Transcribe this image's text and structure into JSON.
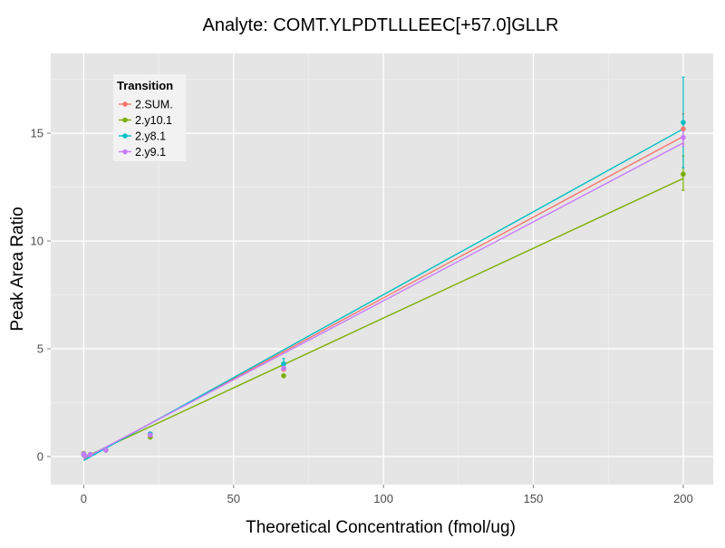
{
  "chart_data": {
    "type": "scatter",
    "title": "Analyte: COMT.YLPDTLLLEEC[+57.0]GLLR",
    "xlabel": "Theoretical Concentration (fmol/ug)",
    "ylabel": "Peak Area Ratio",
    "xlim": [
      -11,
      210
    ],
    "ylim": [
      -1.3,
      18.7
    ],
    "x_ticks": [
      0,
      50,
      100,
      150,
      200
    ],
    "y_ticks": [
      0,
      5,
      10,
      15
    ],
    "x_tick_labels": [
      "0",
      "50",
      "100",
      "150",
      "200"
    ],
    "y_tick_labels": [
      "0",
      "5",
      "10",
      "15"
    ],
    "grid": true,
    "legend": {
      "title": "Transition",
      "position": "top-left"
    },
    "series": [
      {
        "name": "2.SUM.",
        "color": "#F8766D",
        "points": [
          {
            "x": 0,
            "y": 0.15
          },
          {
            "x": 0.3,
            "y": 0.05
          },
          {
            "x": 2.2,
            "y": 0.1
          },
          {
            "x": 7.4,
            "y": 0.3
          },
          {
            "x": 22.2,
            "y": 1.05
          },
          {
            "x": 66.7,
            "y": 4.05
          },
          {
            "x": 200,
            "y": 15.2,
            "err": [
              14.5,
              15.9
            ]
          }
        ],
        "fit": [
          [
            0,
            -0.13
          ],
          [
            200,
            14.85
          ]
        ]
      },
      {
        "name": "2.y10.1",
        "color": "#7CAE00",
        "points": [
          {
            "x": 0,
            "y": 0.08
          },
          {
            "x": 0.3,
            "y": 0.04
          },
          {
            "x": 2.2,
            "y": 0.1
          },
          {
            "x": 7.4,
            "y": 0.3
          },
          {
            "x": 22.2,
            "y": 0.9
          },
          {
            "x": 66.7,
            "y": 3.75
          },
          {
            "x": 200,
            "y": 13.1,
            "err": [
              12.35,
              13.95
            ]
          }
        ],
        "fit": [
          [
            0,
            -0.05
          ],
          [
            200,
            12.9
          ]
        ]
      },
      {
        "name": "2.y8.1",
        "color": "#00BFC4",
        "points": [
          {
            "x": 0,
            "y": 0.12
          },
          {
            "x": 0.3,
            "y": 0.05
          },
          {
            "x": 2.2,
            "y": 0.1
          },
          {
            "x": 7.4,
            "y": 0.3
          },
          {
            "x": 22.2,
            "y": 1.05
          },
          {
            "x": 66.7,
            "y": 4.3,
            "err": [
              4.1,
              4.55
            ]
          },
          {
            "x": 200,
            "y": 15.5,
            "err": [
              13.4,
              17.6
            ]
          }
        ],
        "fit": [
          [
            0,
            -0.18
          ],
          [
            200,
            15.2
          ]
        ]
      },
      {
        "name": "2.y9.1",
        "color": "#C77CFF",
        "points": [
          {
            "x": 0,
            "y": 0.1
          },
          {
            "x": 0.3,
            "y": 0.05
          },
          {
            "x": 2.2,
            "y": 0.1
          },
          {
            "x": 7.4,
            "y": 0.3
          },
          {
            "x": 22.2,
            "y": 1.0
          },
          {
            "x": 66.7,
            "y": 4.1
          },
          {
            "x": 200,
            "y": 14.8,
            "err": [
              14.4,
              15.1
            ]
          }
        ],
        "fit": [
          [
            0,
            -0.1
          ],
          [
            200,
            14.55
          ]
        ]
      }
    ]
  }
}
